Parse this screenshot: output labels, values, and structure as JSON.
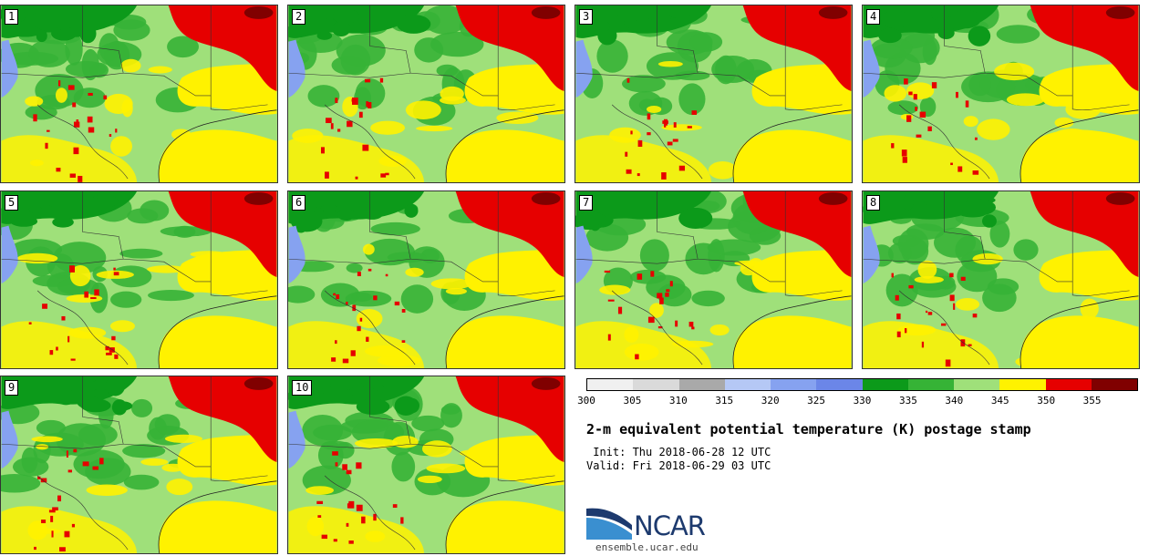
{
  "title": "2-m equivalent potential temperature (K) postage stamp",
  "init_label": " Init: Thu 2018-06-28 12 UTC",
  "valid_label": "Valid: Fri 2018-06-29 03 UTC",
  "panels": [
    {
      "label": "1"
    },
    {
      "label": "2"
    },
    {
      "label": "3"
    },
    {
      "label": "4"
    },
    {
      "label": "5"
    },
    {
      "label": "6"
    },
    {
      "label": "7"
    },
    {
      "label": "8"
    },
    {
      "label": "9"
    },
    {
      "label": "10"
    }
  ],
  "colorbar": {
    "colors": [
      "#f0f0f0",
      "#dadada",
      "#a9a9a9",
      "#b5c8f5",
      "#86a2f0",
      "#6b86e8",
      "#0c9a1a",
      "#36b336",
      "#9fe07a",
      "#fff200",
      "#e60000",
      "#800000"
    ],
    "ticks": [
      "300",
      "305",
      "310",
      "315",
      "320",
      "325",
      "330",
      "335",
      "340",
      "345",
      "350",
      "355"
    ]
  },
  "logo": {
    "word": "NCAR",
    "url": "ensemble.ucar.edu"
  }
}
